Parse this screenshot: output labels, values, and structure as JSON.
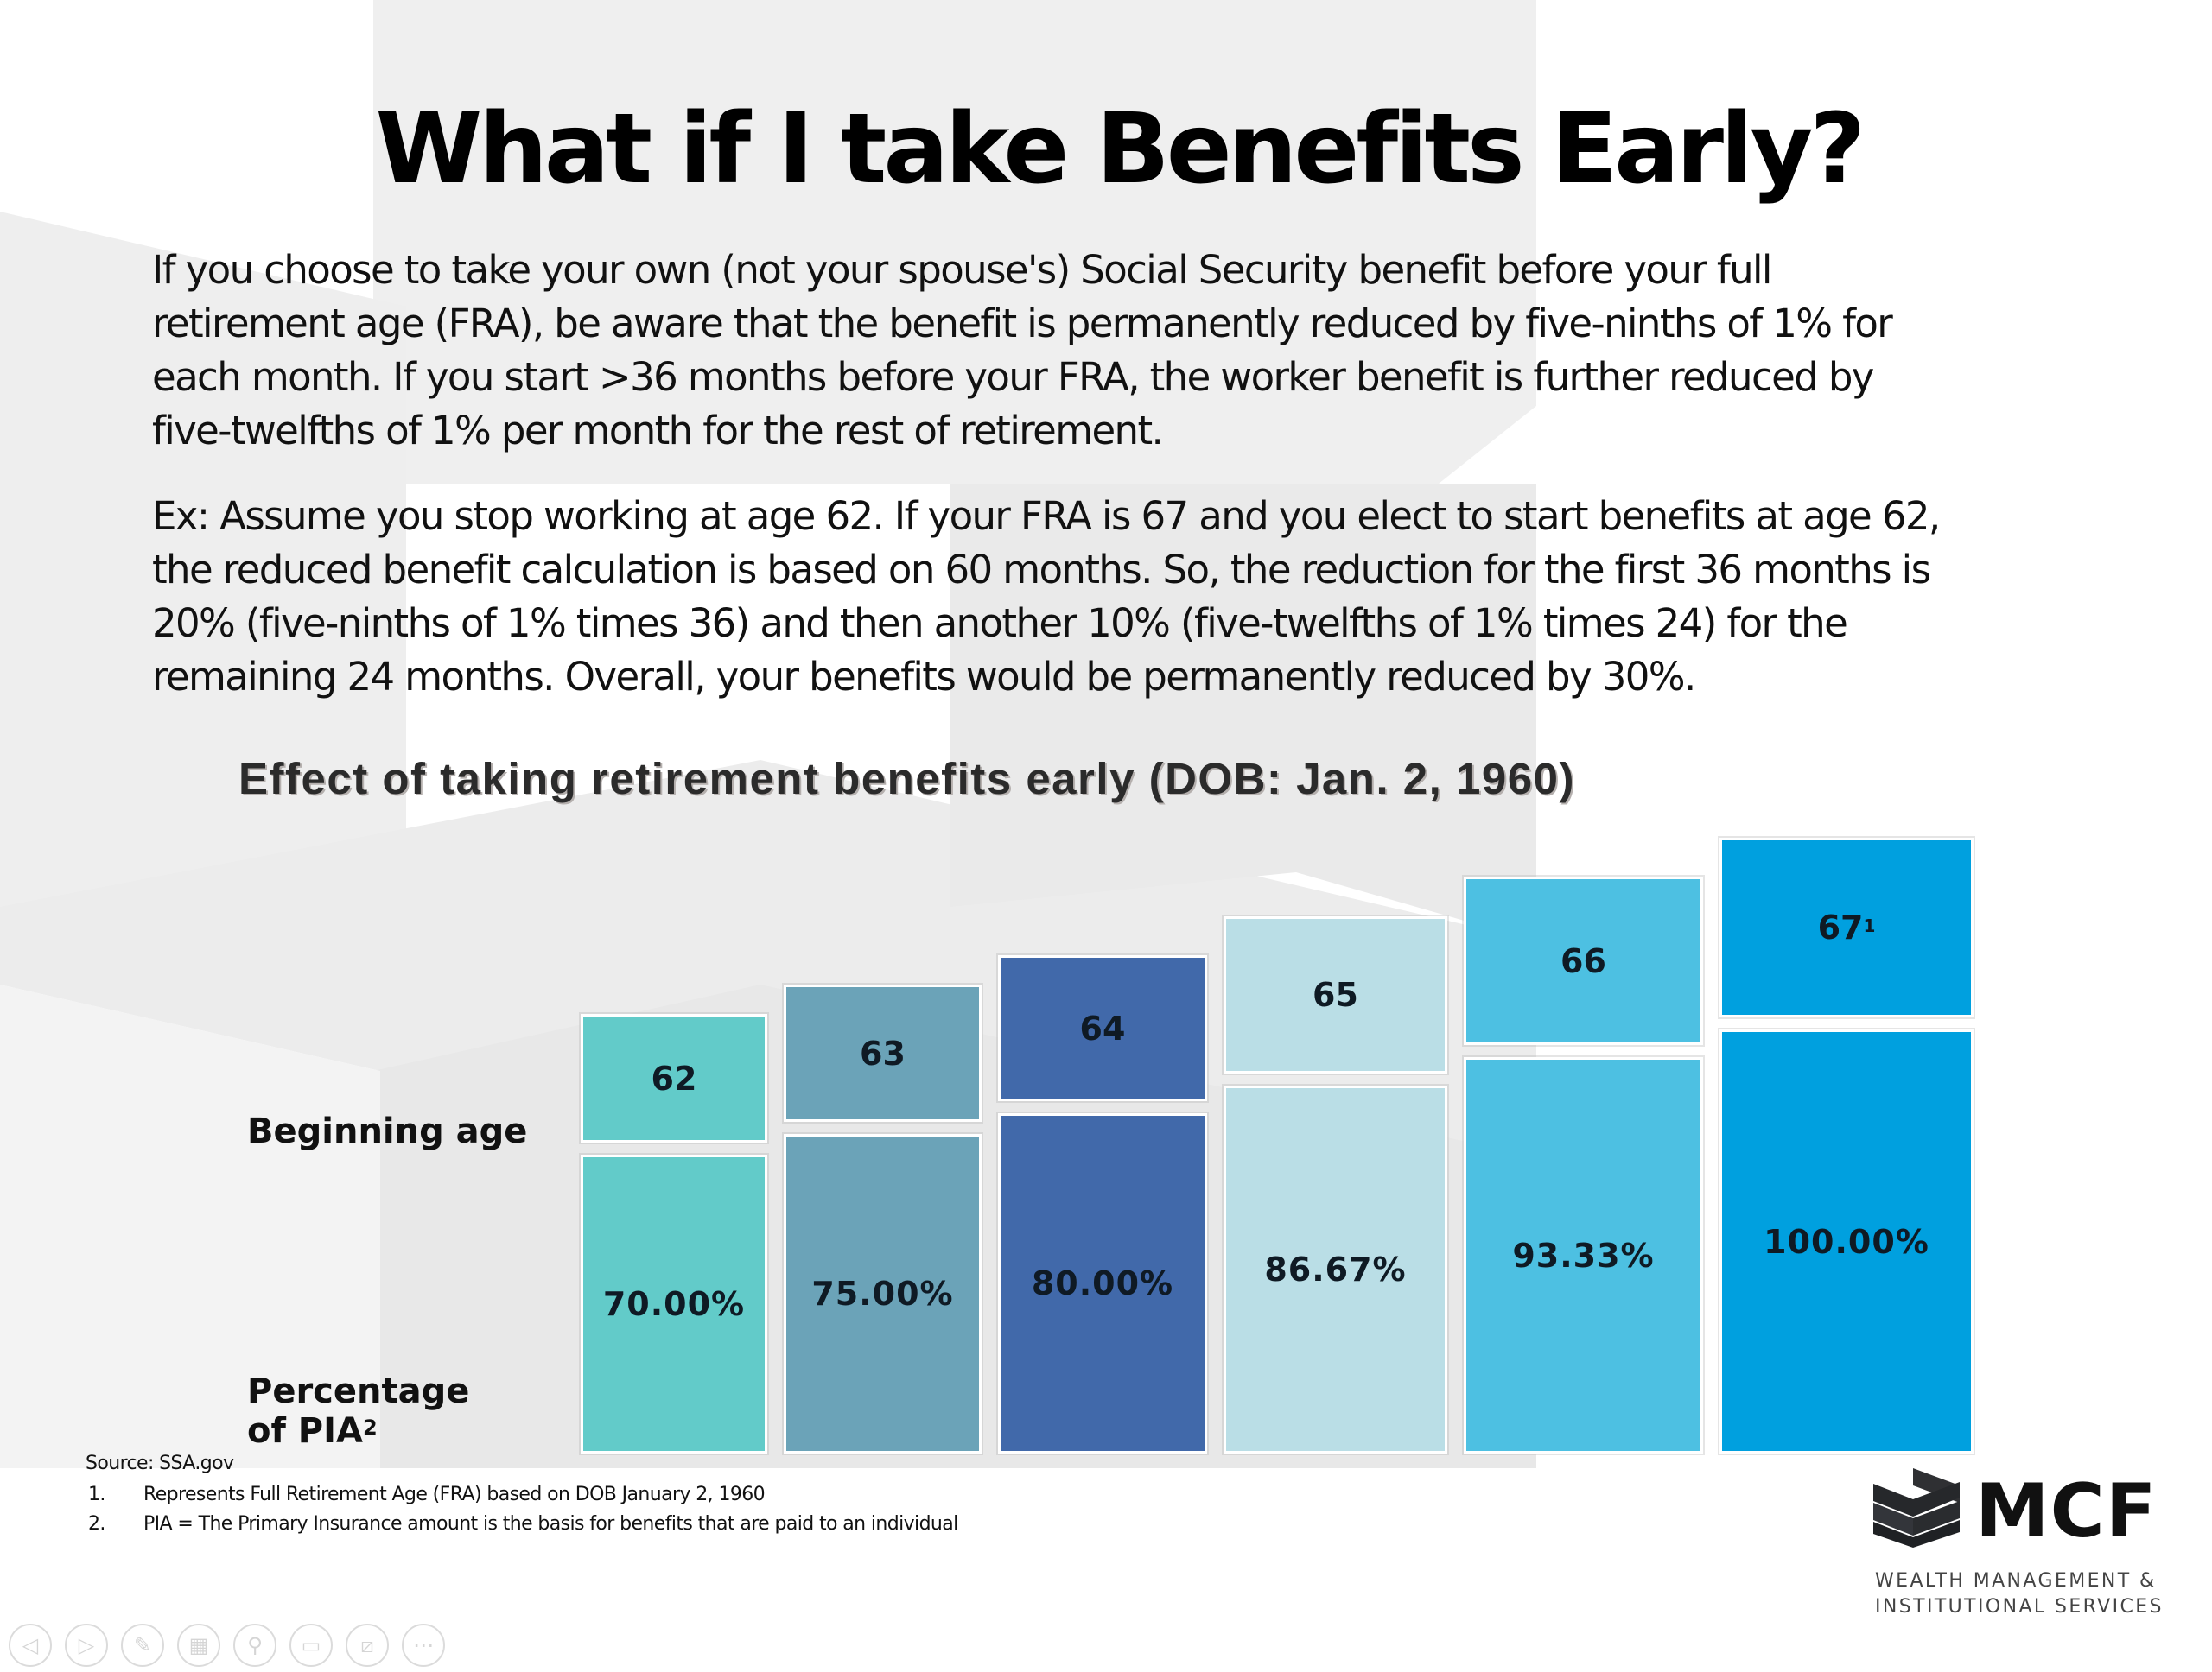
{
  "slide": {
    "title": "What if I take Benefits Early?",
    "paragraph_1": [
      "If you choose to take your own (not your spouse's) Social Security benefit before your full",
      "retirement age (FRA), be aware that the benefit is permanently reduced by five-ninths of 1% for",
      "each month. If you start >36 months before your FRA, the worker benefit is further reduced by",
      "five-twelfths of 1% per month for the rest of retirement."
    ],
    "paragraph_2": [
      "Ex: Assume you stop working at age 62. If your FRA is 67 and you elect to start benefits at age 62,",
      "the reduced benefit calculation is based on 60 months. So, the reduction for the first 36 months is",
      "20% (five-ninths of 1% times 36) and then another 10% (five-twelfths of 1% times 24) for the",
      "remaining 24 months. Overall, your benefits would be permanently reduced by 30%."
    ]
  },
  "chart_data": {
    "type": "bar",
    "title": "Effect of taking retirement benefits early (DOB: Jan. 2, 1960)",
    "row_labels": {
      "age": "Beginning age",
      "pia": "Percentage of PIA",
      "pia_line1": "Percentage",
      "pia_line2": "of PIA",
      "pia_footnote_mark": "2"
    },
    "categories": [
      "62",
      "63",
      "64",
      "65",
      "66",
      "67"
    ],
    "category_footnote_marks": [
      "",
      "",
      "",
      "",
      "",
      "1"
    ],
    "values": [
      70.0,
      75.0,
      80.0,
      86.67,
      93.33,
      100.0
    ],
    "value_labels": [
      "70.00%",
      "75.00%",
      "80.00%",
      "86.67%",
      "93.33%",
      "100.00%"
    ],
    "colors": [
      "#62CBC9",
      "#6BA3B8",
      "#4169AA",
      "#BADEE6",
      "#4DC0E2",
      "#00A0DF"
    ],
    "xlabel": "Beginning age",
    "ylabel": "Percentage of PIA",
    "ylim": [
      0,
      100
    ],
    "grid": false,
    "legend": "none"
  },
  "footer": {
    "source": "Source: SSA.gov",
    "footnotes": [
      {
        "num": "1.",
        "text": "Represents Full Retirement Age (FRA) based on DOB January 2, 1960"
      },
      {
        "num": "2.",
        "text": "PIA = The Primary Insurance amount is the basis for benefits that are paid to an individual"
      }
    ]
  },
  "logo": {
    "name": "MCF",
    "subtitle_line1": "WEALTH MANAGEMENT &",
    "subtitle_line2": "INSTITUTIONAL SERVICES"
  },
  "toolbar": {
    "buttons": [
      {
        "name": "previous-slide",
        "icon": "◁"
      },
      {
        "name": "next-slide",
        "icon": "▷"
      },
      {
        "name": "pen",
        "icon": "✎"
      },
      {
        "name": "see-all-slides",
        "icon": "▦"
      },
      {
        "name": "zoom",
        "icon": "⚲"
      },
      {
        "name": "subtitles",
        "icon": "▭"
      },
      {
        "name": "camera",
        "icon": "⧄"
      },
      {
        "name": "more-options",
        "icon": "⋯"
      }
    ]
  }
}
